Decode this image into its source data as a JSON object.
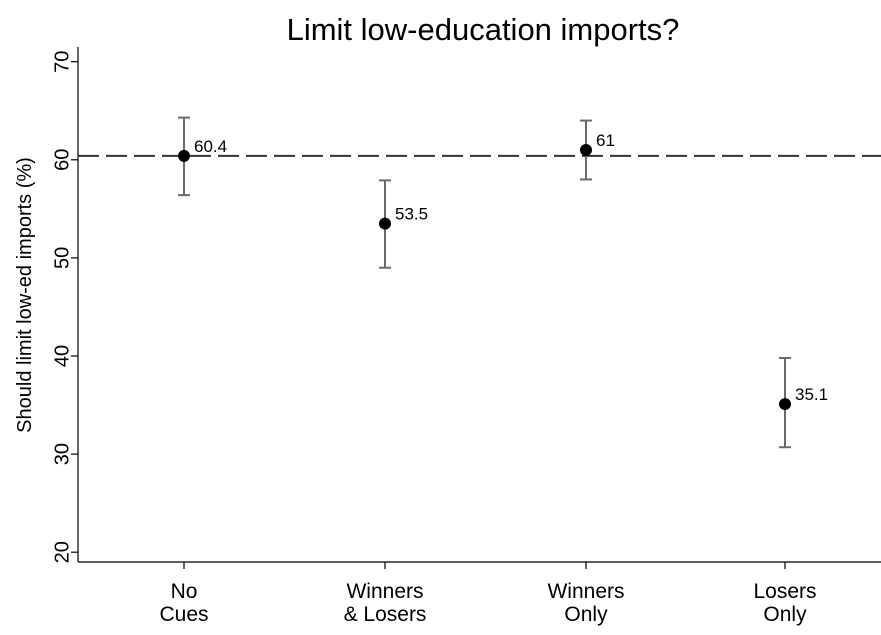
{
  "chart_data": {
    "type": "scatter",
    "title": "Limit low-education imports?",
    "ylabel": "Should limit low-ed imports (%)",
    "xlabel": "",
    "ylim": [
      19,
      71.5
    ],
    "yticks": [
      20,
      30,
      40,
      50,
      60,
      70
    ],
    "grid": false,
    "reference_line": 60.4,
    "categories": [
      [
        "No",
        "Cues"
      ],
      [
        "Winners",
        "& Losers"
      ],
      [
        "Winners",
        "Only"
      ],
      [
        "Losers",
        "Only"
      ]
    ],
    "points": [
      {
        "value": 60.4,
        "ci_low": 56.4,
        "ci_high": 64.3,
        "label": "60.4"
      },
      {
        "value": 53.5,
        "ci_low": 49.0,
        "ci_high": 57.9,
        "label": "53.5"
      },
      {
        "value": 61.0,
        "ci_low": 58.0,
        "ci_high": 64.0,
        "label": "61"
      },
      {
        "value": 35.1,
        "ci_low": 30.7,
        "ci_high": 39.8,
        "label": "35.1"
      }
    ]
  }
}
